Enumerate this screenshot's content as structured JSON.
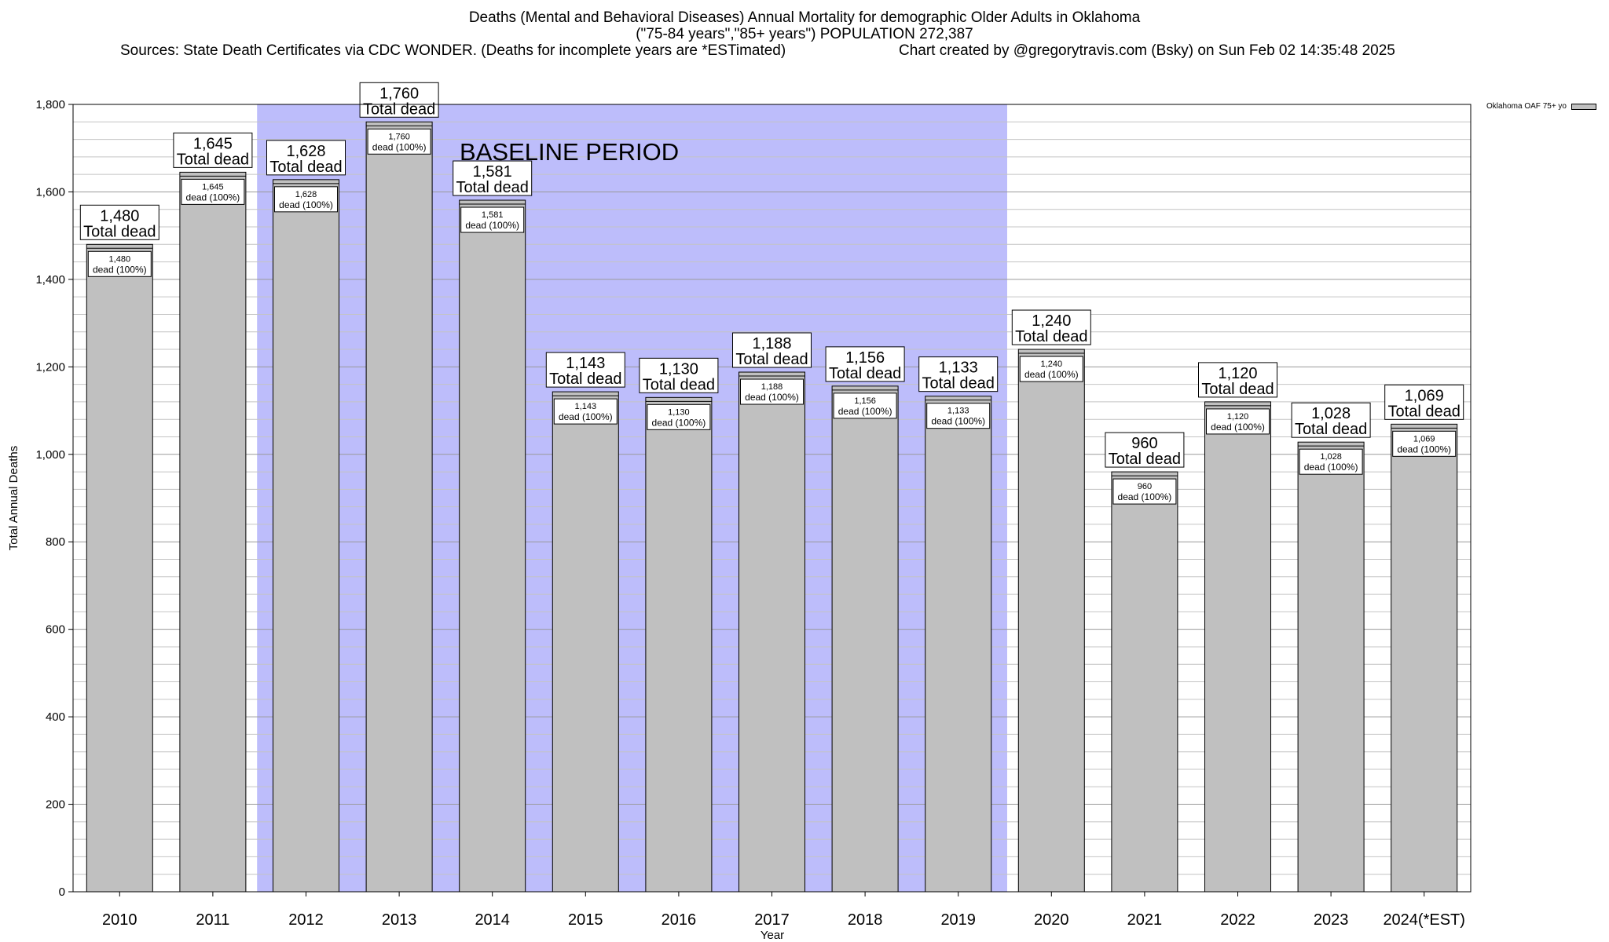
{
  "chart_data": {
    "type": "bar",
    "title_line1": "Deaths (Mental and Behavioral Diseases) Annual Mortality for demographic Older Adults in Oklahoma",
    "title_line2": "(\"75-84 years\",\"85+ years\") POPULATION 272,387",
    "sources": "Sources: State Death Certificates via CDC WONDER. (Deaths for incomplete years are *ESTimated)",
    "credit": "Chart created by @gregorytravis.com (Bsky) on Sun Feb 02 14:35:48 2025",
    "xlabel": "Year",
    "ylabel": "Total Annual Deaths",
    "ylim": [
      0,
      1800
    ],
    "yticks": [
      0,
      200,
      400,
      600,
      800,
      1000,
      1200,
      1400,
      1600,
      1800
    ],
    "ytick_labels": [
      "0",
      "200",
      "400",
      "600",
      "800",
      "1,000",
      "1,200",
      "1,400",
      "1,600",
      "1,800"
    ],
    "minor_grid_step": 40,
    "grid": true,
    "categories": [
      "2010",
      "2011",
      "2012",
      "2013",
      "2014",
      "2015",
      "2016",
      "2017",
      "2018",
      "2019",
      "2020",
      "2021",
      "2022",
      "2023",
      "2024(*EST)"
    ],
    "series": [
      {
        "name": "Oklahoma OAF 75+ yo",
        "values": [
          1480,
          1645,
          1628,
          1760,
          1581,
          1143,
          1130,
          1188,
          1156,
          1133,
          1240,
          960,
          1120,
          1028,
          1069
        ],
        "value_labels": [
          "1,480",
          "1,645",
          "1,628",
          "1,760",
          "1,581",
          "1,143",
          "1,130",
          "1,188",
          "1,156",
          "1,133",
          "1,240",
          "960",
          "1,120",
          "1,028",
          "1,069"
        ]
      }
    ],
    "bar_label_suffix": "Total dead",
    "inner_label_suffix": "dead (100%)",
    "baseline_period": {
      "label": "BASELINE PERIOD",
      "start": "2012",
      "end": "2019"
    },
    "legend_placement": "top-right",
    "colors": {
      "bar": "#c0c0c0",
      "baseline": "#bdbdfb",
      "text": "#000000"
    }
  }
}
